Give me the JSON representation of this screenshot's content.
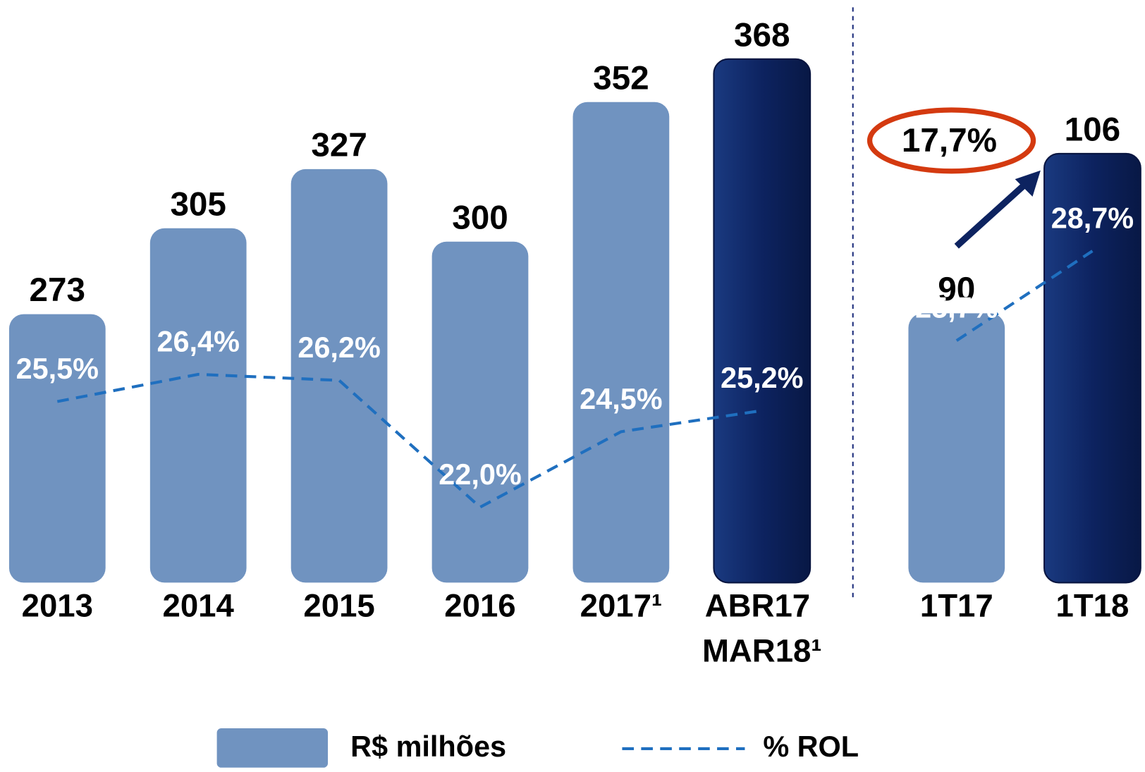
{
  "chart_data": [
    {
      "type": "bar",
      "categories": [
        "2013",
        "2014",
        "2015",
        "2016",
        "2017¹",
        "ABR17 MAR18¹"
      ],
      "series": [
        {
          "name": "R$ milhões",
          "colors": [
            "#7093c0",
            "#7093c0",
            "#7093c0",
            "#7093c0",
            "#7093c0",
            "#0d2360"
          ],
          "values": [
            273,
            305,
            327,
            300,
            352,
            368
          ]
        },
        {
          "name": "% ROL",
          "type": "line",
          "axis": "y2",
          "color": "#1f6fbf",
          "values": [
            25.5,
            26.4,
            26.2,
            22.0,
            24.5,
            25.2
          ],
          "value_labels": [
            "25,5%",
            "26,4%",
            "26,2%",
            "22,0%",
            "24,5%",
            "25,2%"
          ]
        }
      ],
      "ylim": [
        173,
        390
      ],
      "y2lim": [
        19.5,
        38.8
      ],
      "legend": "bottom"
    },
    {
      "type": "bar",
      "categories": [
        "1T17",
        "1T18"
      ],
      "series": [
        {
          "colors": [
            "#7093c0",
            "#0d2360"
          ],
          "values": [
            90,
            106
          ]
        },
        {
          "type": "line",
          "axis": "y2",
          "color": "#1f6fbf",
          "values": [
            25.7,
            28.7
          ],
          "value_labels": [
            "25,7%",
            "28,7%"
          ]
        }
      ],
      "ylim": [
        63,
        121.4
      ],
      "y2lim": [
        17.6,
        37.1
      ],
      "annotation": "17,7%"
    }
  ]
}
